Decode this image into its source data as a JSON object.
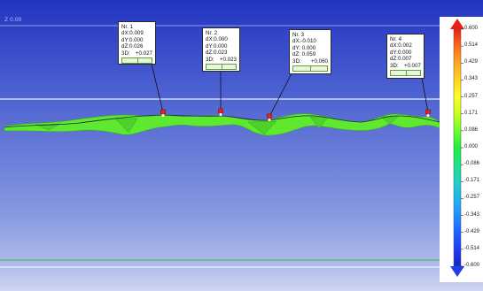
{
  "viewport": {
    "coord_label": "Z 0.00"
  },
  "callouts": [
    {
      "title": "Nr. 1",
      "dx": "dX:0.009",
      "dy": "dY:0.000",
      "dz": "dZ:0.026",
      "d3_label": "3D:",
      "d3_value": "+0.027"
    },
    {
      "title": "Nr. 2",
      "dx": "dX:0.000",
      "dy": "dY:0.000",
      "dz": "dZ:0.023",
      "d3_label": "3D:",
      "d3_value": "+0.023"
    },
    {
      "title": "Nr. 3",
      "dx": "dX:-0.010",
      "dy": "dY: 0.000",
      "dz": "dZ: 0.059",
      "d3_label": "3D:",
      "d3_value": "+0.060"
    },
    {
      "title": "Nr. 4",
      "dx": "dX:0.002",
      "dy": "dY:0.000",
      "dz": "dZ:0.007",
      "d3_label": "3D:",
      "d3_value": "+0.007"
    }
  ],
  "color_scale": {
    "labels": [
      "0.600",
      "0.514",
      "0.429",
      "0.343",
      "0.257",
      "0.171",
      "0.086",
      "0.000",
      "-0.086",
      "-0.171",
      "-0.257",
      "-0.343",
      "-0.429",
      "-0.514",
      "-0.600"
    ],
    "colors": [
      "#e8201a",
      "#ff6a1a",
      "#ffa81f",
      "#ffd21f",
      "#ffff22",
      "#c4ff1e",
      "#6dff2b",
      "#1ff03c",
      "#1fe08a",
      "#1fd0c8",
      "#1fb4ee",
      "#1f8fff",
      "#1f62ff",
      "#1f3cf0",
      "#1424c8"
    ]
  },
  "icon_colors": {
    "top_arrow": "#e8201a",
    "bottom_arrow": "#1f3cf0",
    "marker": "#e82020",
    "deviation": "#5ee830"
  }
}
